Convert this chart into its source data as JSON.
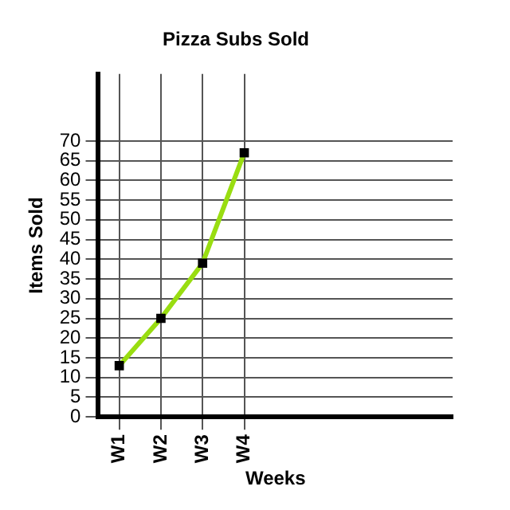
{
  "chart_data": {
    "type": "line",
    "title": "Pizza Subs Sold",
    "xlabel": "Weeks",
    "ylabel": "Items Sold",
    "categories": [
      "W1",
      "W2",
      "W3",
      "W4"
    ],
    "series": [
      {
        "color": "#99dd11",
        "values": [
          13,
          25,
          39,
          67
        ]
      }
    ],
    "ylim": [
      0,
      87
    ],
    "yticks": [
      0,
      5,
      10,
      15,
      20,
      25,
      30,
      35,
      40,
      45,
      50,
      55,
      60,
      65,
      70
    ],
    "grid": true,
    "legend": false,
    "marker": "square",
    "line_style": "solid"
  }
}
